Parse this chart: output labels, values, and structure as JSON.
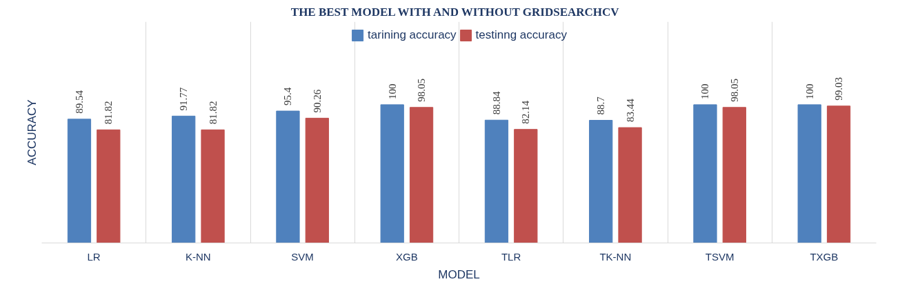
{
  "chart_data": {
    "type": "bar",
    "title": "THE BEST MODEL  WITH  AND WITHOUT GRIDSEARCHCV",
    "xlabel": "MODEL",
    "ylabel": "ACCURACY",
    "categories": [
      "LR",
      "K-NN",
      "SVM",
      "XGB",
      "TLR",
      "TK-NN",
      "TSVM",
      "TXGB"
    ],
    "series": [
      {
        "name": "tarining accuracy",
        "color": "#4f81bd",
        "values": [
          89.54,
          91.77,
          95.4,
          100,
          88.84,
          88.7,
          100,
          100
        ]
      },
      {
        "name": "testinng accuracy",
        "color": "#c0504d",
        "values": [
          81.82,
          81.82,
          90.26,
          98.05,
          82.14,
          83.44,
          98.05,
          99.03
        ]
      }
    ],
    "data_labels": true,
    "grid": "x",
    "legend": "top"
  }
}
